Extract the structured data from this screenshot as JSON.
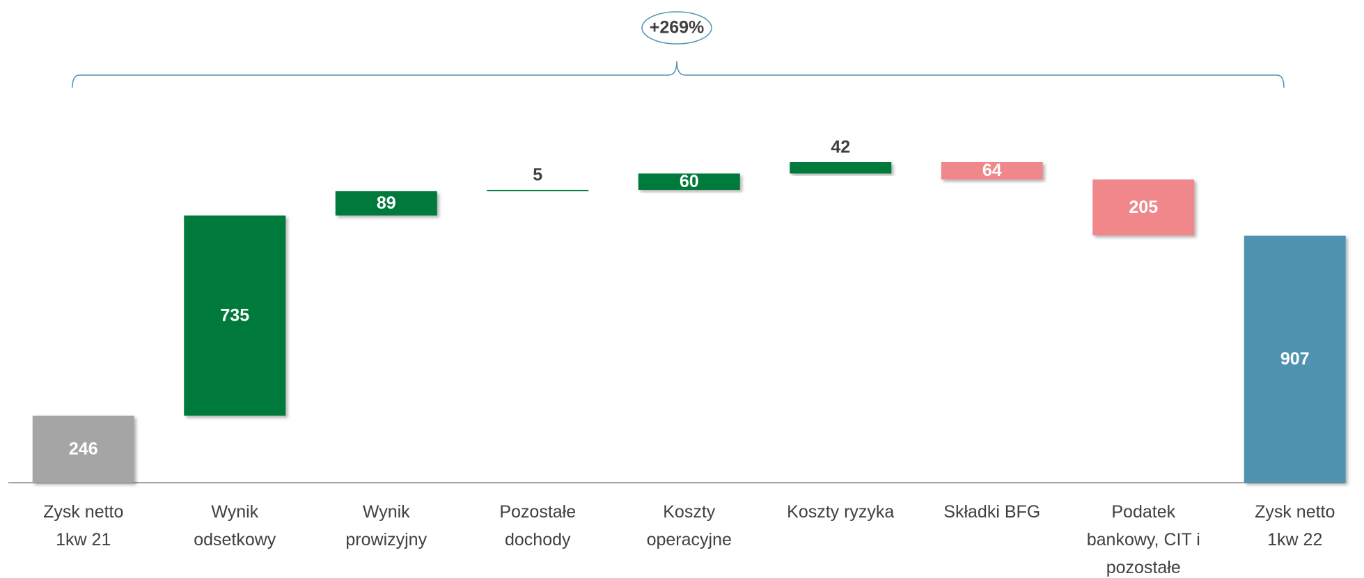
{
  "chart_data": {
    "type": "waterfall",
    "annotation": "+269%",
    "categories": [
      "Zysk netto\n1kw 21",
      "Wynik\nodsetkowy",
      "Wynik\nprowizyjny",
      "Pozostałe\ndochody",
      "Koszty\noperacyjne",
      "Koszty ryzyka",
      "Składki BFG",
      "Podatek\nbankowy, CIT i\npozostałe",
      "Zysk netto\n1kw 22"
    ],
    "values": [
      246,
      735,
      89,
      5,
      60,
      42,
      -64,
      -205,
      907
    ],
    "value_labels": [
      "246",
      "735",
      "89",
      "5",
      "60",
      "42",
      "64",
      "205",
      "907"
    ],
    "measures": [
      "total",
      "relative",
      "relative",
      "relative",
      "relative",
      "relative",
      "relative",
      "relative",
      "total"
    ],
    "colors": [
      "#a5a5a5",
      "#007a3b",
      "#007a3b",
      "#007a3b",
      "#007a3b",
      "#007a3b",
      "#f0878a",
      "#f0878a",
      "#4f93b0"
    ],
    "ylim": [
      0,
      1200
    ]
  }
}
